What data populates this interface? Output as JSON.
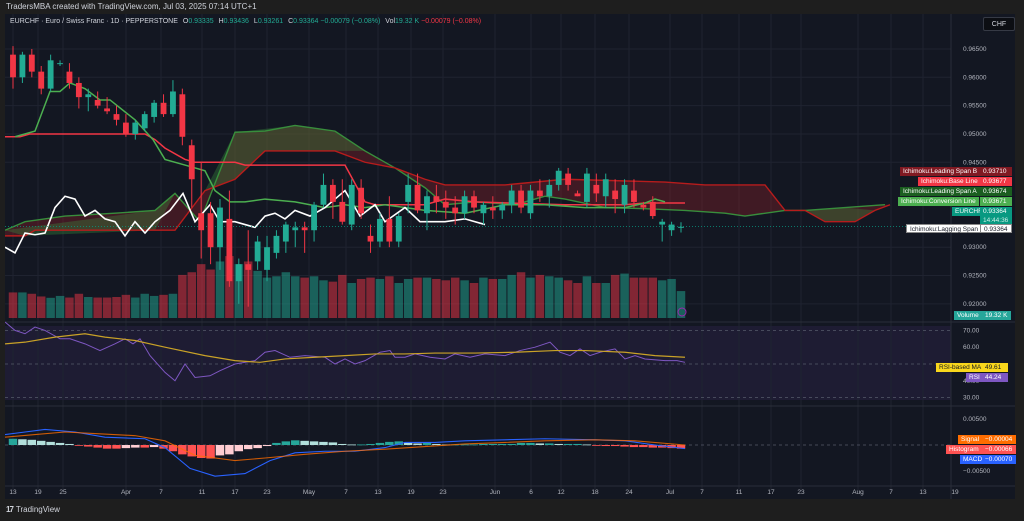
{
  "header": {
    "created_by": "TradersMBA created with TradingView.com, Jul 03, 2025 07:14 UTC+1"
  },
  "legend": {
    "symbol": "EURCHF · Euro / Swiss Franc · 1D · PEPPERSTONE",
    "open_label": "O",
    "open": "0.93335",
    "high_label": "H",
    "high": "0.93436",
    "low_label": "L",
    "low": "0.93261",
    "close_label": "C",
    "close": "0.93364",
    "change": "−0.00079 (−0.08%)",
    "vol_label": "Vol",
    "vol": "19.32 K",
    "vol_change": "−0.00079 (−0.08%)"
  },
  "currency_button": "CHF",
  "footer": {
    "brand": "TradingView",
    "logo": "17"
  },
  "colors": {
    "up": "#22ab94",
    "down": "#f23645",
    "conversion": "#4caf50",
    "base": "#f23645",
    "span_a": "#388e3c",
    "span_b": "#b71c1c",
    "lagging": "#ffffff",
    "rsi": "#7e57c2",
    "rsi_ma": "#c9a227",
    "macd": "#2962ff",
    "signal": "#ff6d00"
  },
  "price_axis": {
    "labels": [
      "0.96500",
      "0.96000",
      "0.95500",
      "0.95000",
      "0.94500",
      "0.93000",
      "0.92500",
      "0.92000"
    ]
  },
  "rsi_axis": {
    "labels": [
      "70.00",
      "60.00",
      "40.00",
      "30.00"
    ]
  },
  "macd_axis": {
    "labels": [
      "0.00500",
      "−0.00500"
    ]
  },
  "time_axis": {
    "labels": [
      "13",
      "19",
      "25",
      "Apr",
      "7",
      "11",
      "17",
      "23",
      "May",
      "7",
      "13",
      "19",
      "23",
      "Jun",
      "6",
      "12",
      "18",
      "24",
      "Jul",
      "7",
      "11",
      "17",
      "23",
      "Aug",
      "7",
      "13",
      "19"
    ]
  },
  "tags": {
    "leading_span_b": {
      "label": "Ichimoku:Leading Span B",
      "value": "0.93710"
    },
    "base_line": {
      "label": "Ichimoku:Base Line",
      "value": "0.93677"
    },
    "leading_span_a": {
      "label": "Ichimoku:Leading Span A",
      "value": "0.93674"
    },
    "conversion_line": {
      "label": "Ichimoku:Conversion Line",
      "value": "0.93671"
    },
    "symbol": {
      "label": "EURCHF",
      "value": "0.93364",
      "countdown": "14:44:36"
    },
    "lagging_span": {
      "label": "Ichimoku:Lagging Span",
      "value": "0.93364"
    },
    "volume": {
      "label": "Volume",
      "value": "19.32 K"
    },
    "rsi_ma": {
      "label": "RSI-based MA",
      "value": "49.61"
    },
    "rsi": {
      "label": "RSI",
      "value": "44.24"
    },
    "signal": {
      "label": "Signal",
      "value": "−0.00004"
    },
    "histogram": {
      "label": "Histogram",
      "value": "−0.00066"
    },
    "macd": {
      "label": "MACD",
      "value": "−0.00070"
    }
  },
  "chart_data": [
    {
      "type": "candlestick",
      "title": "EURCHF · Euro / Swiss Franc · 1D · PEPPERSTONE",
      "ylabel": "CHF",
      "ylim": [
        0.9175,
        0.968
      ],
      "x_ticks": [
        "13",
        "19",
        "25",
        "Apr",
        "7",
        "11",
        "17",
        "23",
        "May",
        "7",
        "13",
        "19",
        "23",
        "Jun",
        "6",
        "12",
        "18",
        "24",
        "Jul",
        "7",
        "11",
        "17",
        "23",
        "Aug",
        "7",
        "13",
        "19"
      ],
      "ohlc": [
        [
          0.964,
          0.9655,
          0.958,
          0.96
        ],
        [
          0.96,
          0.9645,
          0.959,
          0.964
        ],
        [
          0.964,
          0.965,
          0.96,
          0.961
        ],
        [
          0.961,
          0.962,
          0.957,
          0.958
        ],
        [
          0.958,
          0.964,
          0.9575,
          0.963
        ],
        [
          0.9625,
          0.963,
          0.962,
          0.9625
        ],
        [
          0.961,
          0.9625,
          0.958,
          0.959
        ],
        [
          0.959,
          0.96,
          0.9545,
          0.9565
        ],
        [
          0.9565,
          0.958,
          0.954,
          0.957
        ],
        [
          0.956,
          0.9575,
          0.9545,
          0.955
        ],
        [
          0.9545,
          0.9565,
          0.9535,
          0.954
        ],
        [
          0.9535,
          0.955,
          0.9515,
          0.9525
        ],
        [
          0.952,
          0.9535,
          0.9495,
          0.95
        ],
        [
          0.95,
          0.9525,
          0.949,
          0.952
        ],
        [
          0.951,
          0.954,
          0.9505,
          0.9535
        ],
        [
          0.953,
          0.956,
          0.952,
          0.9555
        ],
        [
          0.9555,
          0.957,
          0.953,
          0.9535
        ],
        [
          0.9535,
          0.9595,
          0.953,
          0.9575
        ],
        [
          0.957,
          0.958,
          0.948,
          0.9495
        ],
        [
          0.948,
          0.949,
          0.937,
          0.942
        ],
        [
          0.936,
          0.945,
          0.928,
          0.933
        ],
        [
          0.936,
          0.938,
          0.927,
          0.93
        ],
        [
          0.93,
          0.9385,
          0.926,
          0.937
        ],
        [
          0.935,
          0.94,
          0.923,
          0.924
        ],
        [
          0.924,
          0.928,
          0.92,
          0.927
        ],
        [
          0.927,
          0.933,
          0.9195,
          0.926
        ],
        [
          0.9275,
          0.932,
          0.926,
          0.931
        ],
        [
          0.926,
          0.932,
          0.924,
          0.93
        ],
        [
          0.929,
          0.933,
          0.928,
          0.932
        ],
        [
          0.931,
          0.9345,
          0.929,
          0.934
        ],
        [
          0.933,
          0.9345,
          0.93,
          0.9335
        ],
        [
          0.9335,
          0.9345,
          0.929,
          0.933
        ],
        [
          0.933,
          0.938,
          0.931,
          0.9375
        ],
        [
          0.9375,
          0.943,
          0.937,
          0.941
        ],
        [
          0.941,
          0.942,
          0.935,
          0.938
        ],
        [
          0.938,
          0.942,
          0.934,
          0.9345
        ],
        [
          0.934,
          0.942,
          0.933,
          0.941
        ],
        [
          0.9405,
          0.942,
          0.935,
          0.936
        ],
        [
          0.932,
          0.934,
          0.929,
          0.931
        ],
        [
          0.931,
          0.936,
          0.93,
          0.935
        ],
        [
          0.935,
          0.939,
          0.93,
          0.931
        ],
        [
          0.931,
          0.936,
          0.93,
          0.9355
        ],
        [
          0.938,
          0.943,
          0.936,
          0.941
        ],
        [
          0.941,
          0.943,
          0.936,
          0.9365
        ],
        [
          0.936,
          0.94,
          0.933,
          0.939
        ],
        [
          0.939,
          0.941,
          0.936,
          0.938
        ],
        [
          0.938,
          0.94,
          0.935,
          0.937
        ],
        [
          0.937,
          0.939,
          0.934,
          0.936
        ],
        [
          0.936,
          0.94,
          0.935,
          0.939
        ],
        [
          0.939,
          0.94,
          0.936,
          0.937
        ],
        [
          0.936,
          0.938,
          0.934,
          0.9375
        ],
        [
          0.937,
          0.939,
          0.935,
          0.9365
        ],
        [
          0.9365,
          0.938,
          0.935,
          0.9375
        ],
        [
          0.9375,
          0.941,
          0.936,
          0.94
        ],
        [
          0.94,
          0.941,
          0.936,
          0.937
        ],
        [
          0.936,
          0.941,
          0.935,
          0.94
        ],
        [
          0.94,
          0.942,
          0.938,
          0.939
        ],
        [
          0.939,
          0.942,
          0.937,
          0.941
        ],
        [
          0.941,
          0.944,
          0.94,
          0.9435
        ],
        [
          0.943,
          0.944,
          0.94,
          0.941
        ],
        [
          0.9395,
          0.94,
          0.939,
          0.939
        ],
        [
          0.938,
          0.944,
          0.937,
          0.943
        ],
        [
          0.941,
          0.943,
          0.938,
          0.9395
        ],
        [
          0.939,
          0.943,
          0.937,
          0.942
        ],
        [
          0.94,
          0.942,
          0.936,
          0.9385
        ],
        [
          0.9375,
          0.942,
          0.936,
          0.941
        ],
        [
          0.94,
          0.942,
          0.937,
          0.938
        ],
        [
          0.9375,
          0.938,
          0.9365,
          0.937
        ],
        [
          0.938,
          0.939,
          0.935,
          0.9355
        ],
        [
          0.934,
          0.935,
          0.931,
          0.9345
        ],
        [
          0.933,
          0.9345,
          0.932,
          0.934
        ],
        [
          0.9335,
          0.9344,
          0.9326,
          0.9336
        ]
      ],
      "volume": [
        95,
        95,
        90,
        80,
        75,
        82,
        76,
        90,
        78,
        76,
        76,
        78,
        86,
        76,
        90,
        82,
        86,
        90,
        160,
        170,
        200,
        180,
        210,
        230,
        200,
        210,
        175,
        150,
        155,
        170,
        155,
        150,
        155,
        140,
        135,
        160,
        130,
        145,
        150,
        145,
        155,
        130,
        145,
        150,
        150,
        145,
        140,
        150,
        140,
        130,
        150,
        145,
        145,
        160,
        170,
        150,
        160,
        155,
        150,
        140,
        130,
        155,
        130,
        130,
        160,
        165,
        150,
        150,
        150,
        140,
        145,
        100
      ],
      "ichimoku": {
        "conversion_line_last": 0.93671,
        "base_line_last": 0.93677,
        "leading_span_a_last": 0.93674,
        "leading_span_b_last": 0.9371,
        "lagging_span_last": 0.93364
      }
    },
    {
      "type": "line",
      "title": "RSI",
      "ylim": [
        25,
        75
      ],
      "bands": [
        30,
        70
      ],
      "series": [
        {
          "name": "RSI",
          "last": 44.24
        },
        {
          "name": "RSI-based MA",
          "last": 49.61
        }
      ]
    },
    {
      "type": "bar",
      "title": "MACD",
      "ylim": [
        -0.0075,
        0.0075
      ],
      "series": [
        {
          "name": "Histogram",
          "last": -0.00066
        },
        {
          "name": "MACD",
          "last": -0.0007
        },
        {
          "name": "Signal",
          "last": -4e-05
        }
      ]
    }
  ]
}
